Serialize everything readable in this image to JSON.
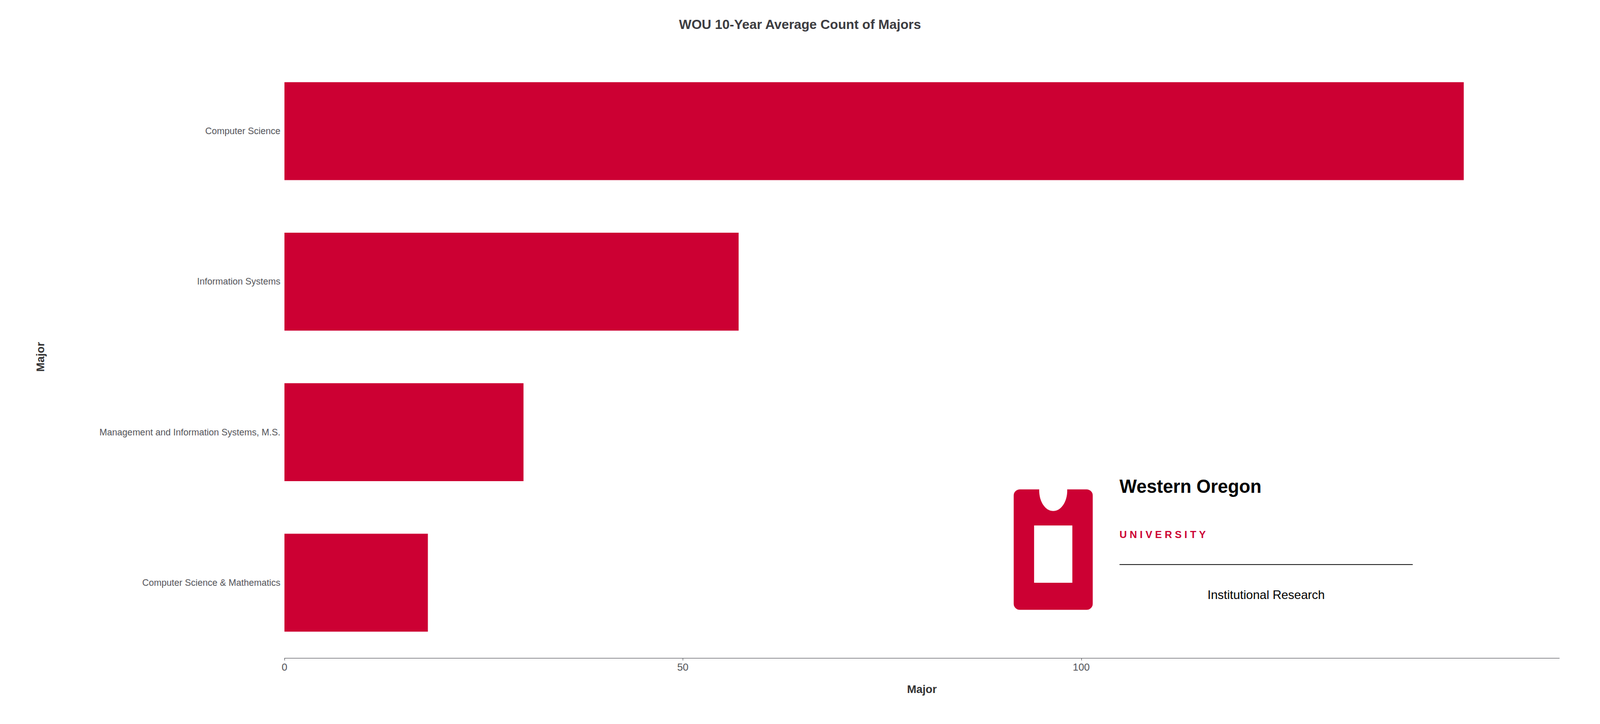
{
  "chart_data": {
    "type": "bar",
    "orientation": "horizontal",
    "title": "WOU 10-Year Average Count of Majors",
    "xlabel": "Major",
    "ylabel": "Major",
    "categories": [
      "Computer Science & Mathematics",
      "Management and Information Systems, M.S.",
      "Information Systems",
      "Computer Science"
    ],
    "values": [
      18,
      30,
      57,
      148
    ],
    "color": "#CC0033",
    "xlim": [
      0,
      160
    ],
    "xticks": [
      0,
      50,
      100
    ],
    "grid": false,
    "annotations": [
      "Western Oregon",
      "U N I V E R S I T Y",
      "Institutional Research"
    ]
  }
}
